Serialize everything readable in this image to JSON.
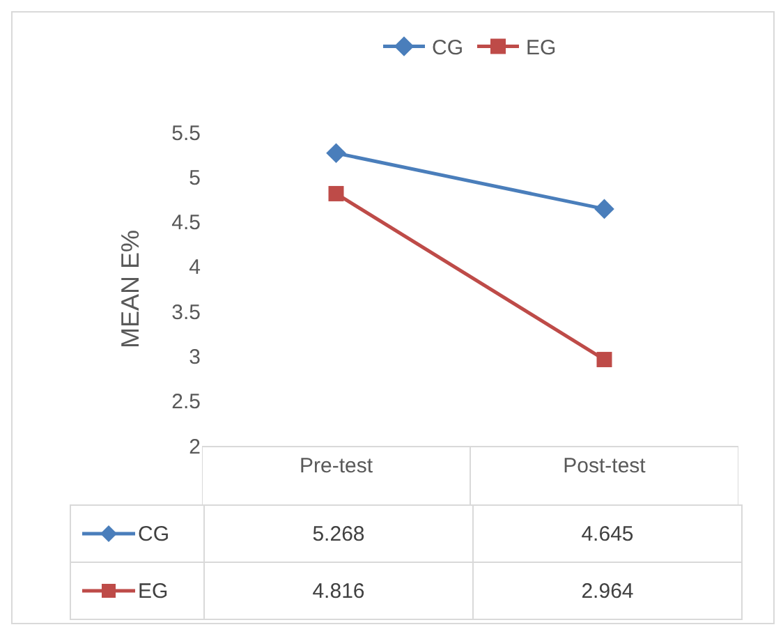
{
  "chart_data": {
    "type": "line",
    "ylabel": "MEAN E%",
    "categories": [
      "Pre-test",
      "Post-test"
    ],
    "series": [
      {
        "name": "CG",
        "color": "#4a7ebb",
        "values": [
          5.268,
          4.645
        ],
        "marker": "diamond"
      },
      {
        "name": "EG",
        "color": "#be4b48",
        "values": [
          4.816,
          2.964
        ],
        "marker": "square"
      }
    ],
    "ylim": [
      2,
      5.5
    ],
    "yticks": [
      2,
      2.5,
      3,
      3.5,
      4,
      4.5,
      5,
      5.5
    ],
    "grid": false,
    "legend": "top",
    "data_labels": true,
    "line_style": "solid"
  }
}
